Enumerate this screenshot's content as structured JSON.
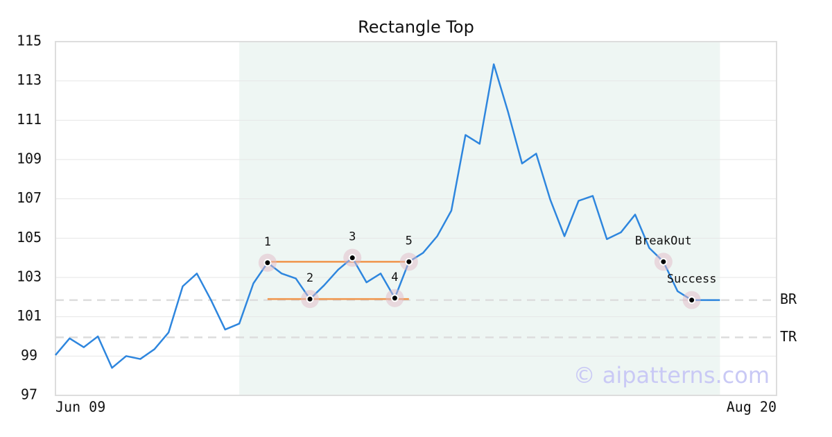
{
  "chart_data": {
    "type": "line",
    "title": "Rectangle Top",
    "x": [
      0,
      1,
      2,
      3,
      4,
      5,
      6,
      7,
      8,
      9,
      10,
      11,
      12,
      13,
      14,
      15,
      16,
      17,
      18,
      19,
      20,
      21,
      22,
      23,
      24,
      25,
      26,
      27,
      28,
      29,
      30,
      31,
      32,
      33,
      34,
      35,
      36,
      37,
      38,
      39,
      40,
      41,
      42,
      43,
      44,
      45,
      46,
      47
    ],
    "xlim": [
      0,
      51
    ],
    "xticks": [
      {
        "value": 0,
        "label": "Jun 09"
      },
      {
        "value": 51,
        "label": "Aug 20"
      }
    ],
    "ylim": [
      97,
      115
    ],
    "yticks": [
      97,
      99,
      101,
      103,
      105,
      107,
      109,
      111,
      113,
      115
    ],
    "grid": true,
    "series": [
      {
        "color": "#2e86de",
        "values": [
          99.05,
          99.9,
          99.45,
          100.0,
          98.4,
          99.0,
          98.85,
          99.35,
          100.2,
          102.55,
          103.2,
          101.85,
          100.35,
          100.65,
          102.7,
          103.75,
          103.2,
          102.95,
          101.9,
          102.6,
          103.4,
          104.0,
          102.75,
          103.2,
          101.95,
          103.8,
          104.25,
          105.1,
          106.4,
          110.25,
          109.8,
          113.85,
          111.45,
          108.8,
          109.3,
          106.95,
          105.1,
          106.9,
          107.15,
          104.95,
          105.3,
          106.2,
          104.5,
          103.8,
          102.3,
          101.85,
          101.85,
          101.85
        ]
      }
    ],
    "highlight_range": [
      13,
      47
    ],
    "highlight_color": "#eef6f3",
    "levels": [
      {
        "label": "BR",
        "value": 101.85
      },
      {
        "label": "TR",
        "value": 99.95
      }
    ],
    "pattern_lines": [
      {
        "x": [
          15,
          25
        ],
        "value": 103.8,
        "color": "#f0944a"
      },
      {
        "x": [
          15,
          25
        ],
        "value": 101.9,
        "color": "#f0944a"
      }
    ],
    "points": [
      {
        "label": "1",
        "x": 15
      },
      {
        "label": "2",
        "x": 18
      },
      {
        "label": "3",
        "x": 21
      },
      {
        "label": "4",
        "x": 24
      },
      {
        "label": "5",
        "x": 25
      },
      {
        "label": "BreakOut",
        "x": 43
      },
      {
        "label": "Success",
        "x": 45
      }
    ],
    "watermark": "© aipatterns.com"
  }
}
